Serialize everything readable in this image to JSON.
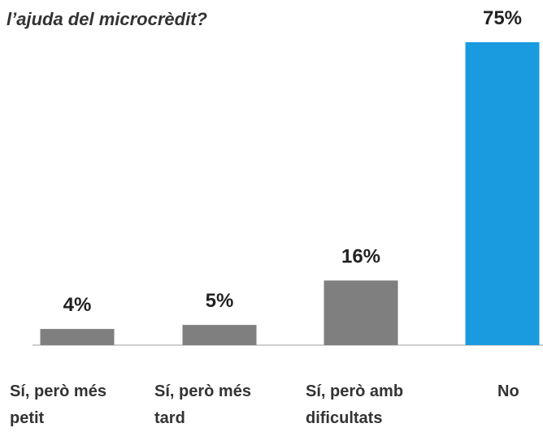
{
  "chart_data": {
    "type": "bar",
    "title": "l’ajuda del microcrèdit?",
    "categories": [
      "Sí, però més petit",
      "Sí, però més tard",
      "Sí, però amb dificultats",
      "No"
    ],
    "values": [
      4,
      5,
      16,
      75
    ],
    "value_labels": [
      "4%",
      "5%",
      "16%",
      "75%"
    ],
    "colors": [
      "#7f7f7f",
      "#7f7f7f",
      "#7f7f7f",
      "#1a9be0"
    ],
    "ylim": [
      0,
      75
    ]
  }
}
